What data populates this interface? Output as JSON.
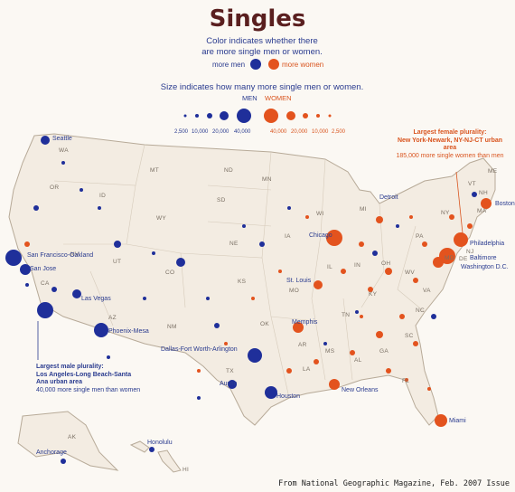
{
  "title": "Singles",
  "subtitle_line1": "Color indicates whether there",
  "subtitle_line2": "are more single men or women.",
  "legend": {
    "more_men": "more men",
    "more_women": "more women",
    "men_color": "#1f2f9a",
    "women_color": "#e3531e",
    "size_title": "Size indicates how many more single men or women.",
    "men_head": "MEN",
    "women_head": "WOMEN",
    "men_ticks": [
      "2,500",
      "10,000",
      "20,000",
      "40,000"
    ],
    "women_ticks": [
      "40,000",
      "20,000",
      "10,000",
      "2,500"
    ]
  },
  "states": [
    {
      "id": "WA",
      "label": "WA"
    },
    {
      "id": "OR",
      "label": "OR"
    },
    {
      "id": "ID",
      "label": "ID"
    },
    {
      "id": "MT",
      "label": "MT"
    },
    {
      "id": "ND",
      "label": "ND"
    },
    {
      "id": "MN",
      "label": "MN"
    },
    {
      "id": "SD",
      "label": "SD"
    },
    {
      "id": "WY",
      "label": "WY"
    },
    {
      "id": "NE",
      "label": "NE"
    },
    {
      "id": "IA",
      "label": "IA"
    },
    {
      "id": "WI",
      "label": "WI"
    },
    {
      "id": "MI",
      "label": "MI"
    },
    {
      "id": "NV",
      "label": "NV"
    },
    {
      "id": "UT",
      "label": "UT"
    },
    {
      "id": "CO",
      "label": "CO"
    },
    {
      "id": "KS",
      "label": "KS"
    },
    {
      "id": "MO",
      "label": "MO"
    },
    {
      "id": "IL",
      "label": "IL"
    },
    {
      "id": "IN",
      "label": "IN"
    },
    {
      "id": "OH",
      "label": "OH"
    },
    {
      "id": "PA",
      "label": "PA"
    },
    {
      "id": "NY",
      "label": "NY"
    },
    {
      "id": "CA",
      "label": "CA"
    },
    {
      "id": "AZ",
      "label": "AZ"
    },
    {
      "id": "NM",
      "label": "NM"
    },
    {
      "id": "OK",
      "label": "OK"
    },
    {
      "id": "AR",
      "label": "AR"
    },
    {
      "id": "TN",
      "label": "TN"
    },
    {
      "id": "KY",
      "label": "KY"
    },
    {
      "id": "WV",
      "label": "WV"
    },
    {
      "id": "VA",
      "label": "VA"
    },
    {
      "id": "NC",
      "label": "NC"
    },
    {
      "id": "SC",
      "label": "SC"
    },
    {
      "id": "GA",
      "label": "GA"
    },
    {
      "id": "AL",
      "label": "AL"
    },
    {
      "id": "MS",
      "label": "MS"
    },
    {
      "id": "LA",
      "label": "LA"
    },
    {
      "id": "TX",
      "label": "TX"
    },
    {
      "id": "FL",
      "label": "FL"
    },
    {
      "id": "ME",
      "label": "ME"
    },
    {
      "id": "VT",
      "label": "VT"
    },
    {
      "id": "NH",
      "label": "NH"
    },
    {
      "id": "MA",
      "label": "MA"
    },
    {
      "id": "NJ",
      "label": "NJ"
    },
    {
      "id": "DE",
      "label": "DE"
    },
    {
      "id": "MD",
      "label": "MD"
    },
    {
      "id": "AK",
      "label": "AK"
    },
    {
      "id": "HI",
      "label": "HI"
    }
  ],
  "cities": [
    {
      "name": "Seattle",
      "gender": "men"
    },
    {
      "name": "San Francisco-Oakland",
      "gender": "men"
    },
    {
      "name": "San Jose",
      "gender": "men"
    },
    {
      "name": "Las Vegas",
      "gender": "men"
    },
    {
      "name": "Phoenix-Mesa",
      "gender": "men"
    },
    {
      "name": "Dallas-Fort Worth-Arlington",
      "gender": "men"
    },
    {
      "name": "Austin",
      "gender": "men"
    },
    {
      "name": "Houston",
      "gender": "men"
    },
    {
      "name": "Memphis",
      "gender": "women"
    },
    {
      "name": "St. Louis",
      "gender": "women"
    },
    {
      "name": "Chicago",
      "gender": "women"
    },
    {
      "name": "Detroit",
      "gender": "women"
    },
    {
      "name": "New Orleans",
      "gender": "women"
    },
    {
      "name": "Miami",
      "gender": "women"
    },
    {
      "name": "Philadelphia",
      "gender": "women"
    },
    {
      "name": "Baltimore",
      "gender": "women"
    },
    {
      "name": "Washington D.C.",
      "gender": "women"
    },
    {
      "name": "Boston",
      "gender": "women"
    },
    {
      "name": "Anchorage",
      "gender": "men"
    },
    {
      "name": "Honolulu",
      "gender": "men"
    }
  ],
  "callouts": {
    "female_head": "Largest female plurality:",
    "female_place": "New York-Newark, NY-NJ-CT urban area",
    "female_count": "185,000 more single women than men",
    "male_head": "Largest male plurality:",
    "male_place": "Los Angeles-Long Beach-Santa Ana urban area",
    "male_count": "40,000 more single men than women"
  },
  "source": "From National Geographic Magazine, Feb. 2007 Issue"
}
